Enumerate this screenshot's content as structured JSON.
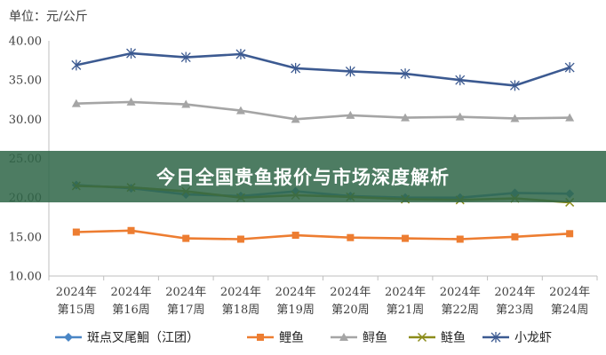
{
  "overlay_title": "今日全国贵鱼报价与市场深度解析",
  "colors": {
    "axis": "#bfbfbf",
    "banner": "#306648"
  },
  "chart_data": {
    "type": "line",
    "unit_label": "单位：元/公斤",
    "x_line1": [
      "2024年",
      "2024年",
      "2024年",
      "2024年",
      "2024年",
      "2024年",
      "2024年",
      "2024年",
      "2024年",
      "2024年"
    ],
    "x_line2": [
      "第15周",
      "第16周",
      "第17周",
      "第18周",
      "第19周",
      "第20周",
      "第21周",
      "第22周",
      "第23周",
      "第24周"
    ],
    "ylim": [
      10,
      40
    ],
    "yticks": [
      "10.00",
      "15.00",
      "20.00",
      "25.00",
      "30.00",
      "35.00",
      "40.00"
    ],
    "grid": false,
    "legend_position": "bottom",
    "series": [
      {
        "name": "斑点叉尾鮰（江团）",
        "color": "#4a86c5",
        "marker": "diamond",
        "values": [
          21.6,
          21.2,
          20.4,
          20.2,
          20.8,
          20.2,
          20.0,
          20.0,
          20.6,
          20.5
        ]
      },
      {
        "name": "鲤鱼",
        "color": "#ed7d31",
        "marker": "square",
        "values": [
          15.6,
          15.8,
          14.8,
          14.7,
          15.2,
          14.9,
          14.8,
          14.7,
          15.0,
          15.4
        ]
      },
      {
        "name": "鲟鱼",
        "color": "#a5a5a5",
        "marker": "triangle",
        "values": [
          32.0,
          32.2,
          31.9,
          31.1,
          30.0,
          30.5,
          30.2,
          30.3,
          30.1,
          30.2
        ]
      },
      {
        "name": "鲢鱼",
        "color": "#8c8c1a",
        "marker": "x",
        "values": [
          21.5,
          21.3,
          20.8,
          20.0,
          20.3,
          20.1,
          19.8,
          19.7,
          19.9,
          19.4
        ]
      },
      {
        "name": "小龙虾",
        "color": "#3c5a91",
        "marker": "star",
        "values": [
          36.9,
          38.4,
          37.9,
          38.3,
          36.5,
          36.1,
          35.8,
          35.0,
          34.3,
          36.6
        ]
      }
    ]
  }
}
